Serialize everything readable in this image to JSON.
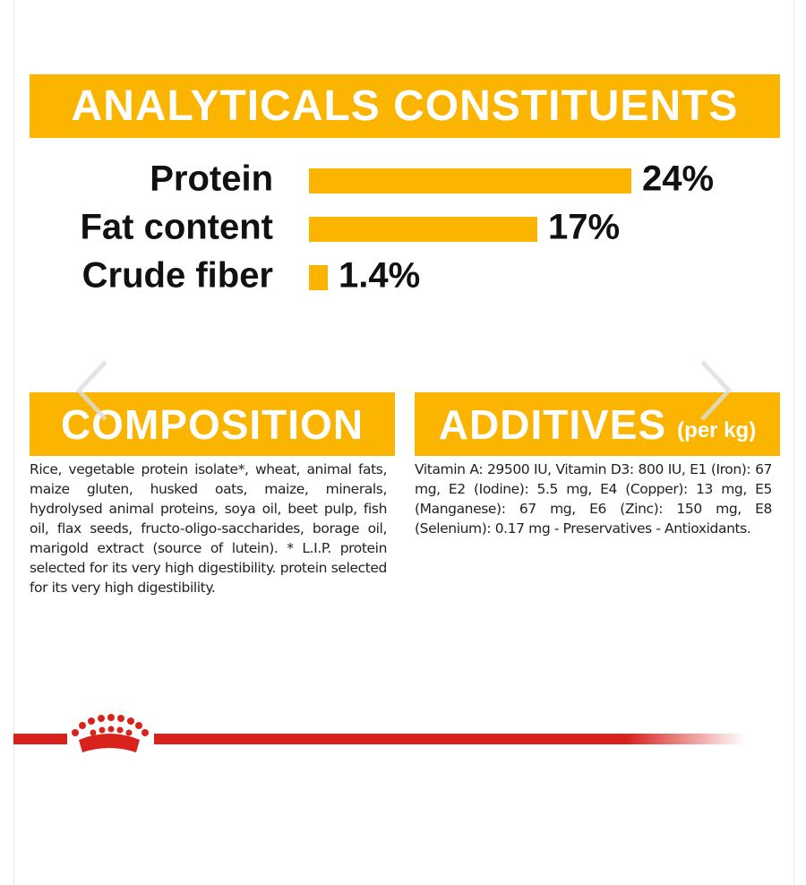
{
  "analyticals": {
    "title": "ANALYTICALS CONSTITUENTS",
    "type": "bar",
    "categories": [
      "Protein",
      "Fat content",
      "Crude fiber"
    ],
    "values": [
      24,
      17,
      1.4
    ],
    "value_labels": [
      "24%",
      "17%",
      "1.4%"
    ],
    "color": "#fbb400"
  },
  "composition": {
    "title": "COMPOSITION",
    "text": "Rice, vegetable protein isolate*, wheat, animal fats, maize gluten, husked oats, maize, minerals, hydrolysed animal proteins, soya oil, beet pulp, fish oil, flax seeds, fructo-oligo-saccharides, borage oil, marigold extract (source of lutein). * L.I.P. protein selected for its very high digestibility. protein selected for its very high digestibility."
  },
  "additives": {
    "title": "ADDITIVES",
    "subtitle": "(per kg)",
    "text": "Vitamin A: 29500 IU, Vitamin D3: 800 IU, E1 (Iron): 67 mg, E2 (Iodine): 5.5 mg, E4 (Copper): 13 mg, E5 (Manganese): 67 mg, E6 (Zinc): 150 mg, E8 (Selenium): 0.17 mg - Preservatives - Antioxidants."
  }
}
